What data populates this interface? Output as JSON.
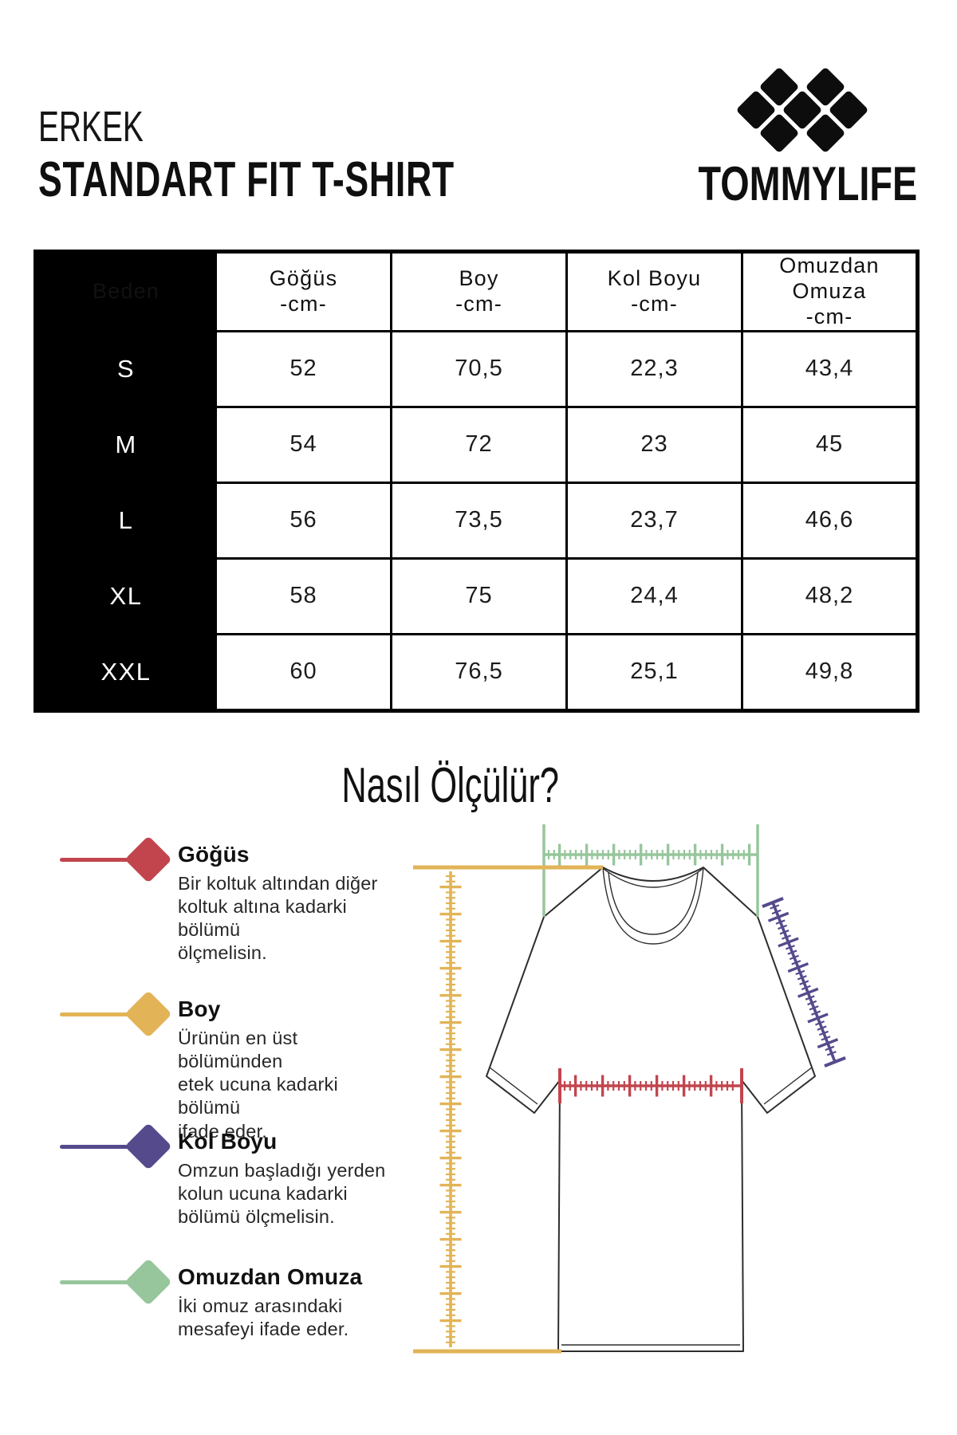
{
  "header": {
    "category": "ERKEK",
    "title": "STANDART FIT T-SHIRT",
    "brand": "TOMMYLIFE"
  },
  "size_table": {
    "corner": "Beden",
    "columns": [
      {
        "l1": "Göğüs",
        "l2": "-cm-"
      },
      {
        "l1": "Boy",
        "l2": "-cm-"
      },
      {
        "l1": "Kol Boyu",
        "l2": "-cm-"
      },
      {
        "l1": "Omuzdan",
        "l2": "Omuza",
        "l3": "-cm-"
      }
    ],
    "rows": [
      {
        "size": "S",
        "values": [
          "52",
          "70,5",
          "22,3",
          "43,4"
        ]
      },
      {
        "size": "M",
        "values": [
          "54",
          "72",
          "23",
          "45"
        ]
      },
      {
        "size": "L",
        "values": [
          "56",
          "73,5",
          "23,7",
          "46,6"
        ]
      },
      {
        "size": "XL",
        "values": [
          "58",
          "75",
          "24,4",
          "48,2"
        ]
      },
      {
        "size": "XXL",
        "values": [
          "60",
          "76,5",
          "25,1",
          "49,8"
        ]
      }
    ]
  },
  "how_to_measure": {
    "heading": "Nasıl Ölçülür?",
    "items": [
      {
        "name": "Göğüs",
        "color": "#C2454E",
        "lines": [
          "Bir koltuk altından diğer",
          "koltuk altına kadarki bölümü",
          "ölçmelisin."
        ]
      },
      {
        "name": "Boy",
        "color": "#E2B457",
        "lines": [
          "Ürünün en üst bölümünden",
          "etek ucuna kadarki bölümü",
          "ifade eder."
        ]
      },
      {
        "name": "Kol Boyu",
        "color": "#544A8C",
        "lines": [
          "Omzun başladığı yerden",
          "kolun ucuna kadarki",
          "bölümü ölçmelisin."
        ]
      },
      {
        "name": "Omuzdan Omuza",
        "color": "#97C69C",
        "lines": [
          "İki omuz arasındaki",
          "mesafeyi ifade eder."
        ]
      }
    ]
  }
}
